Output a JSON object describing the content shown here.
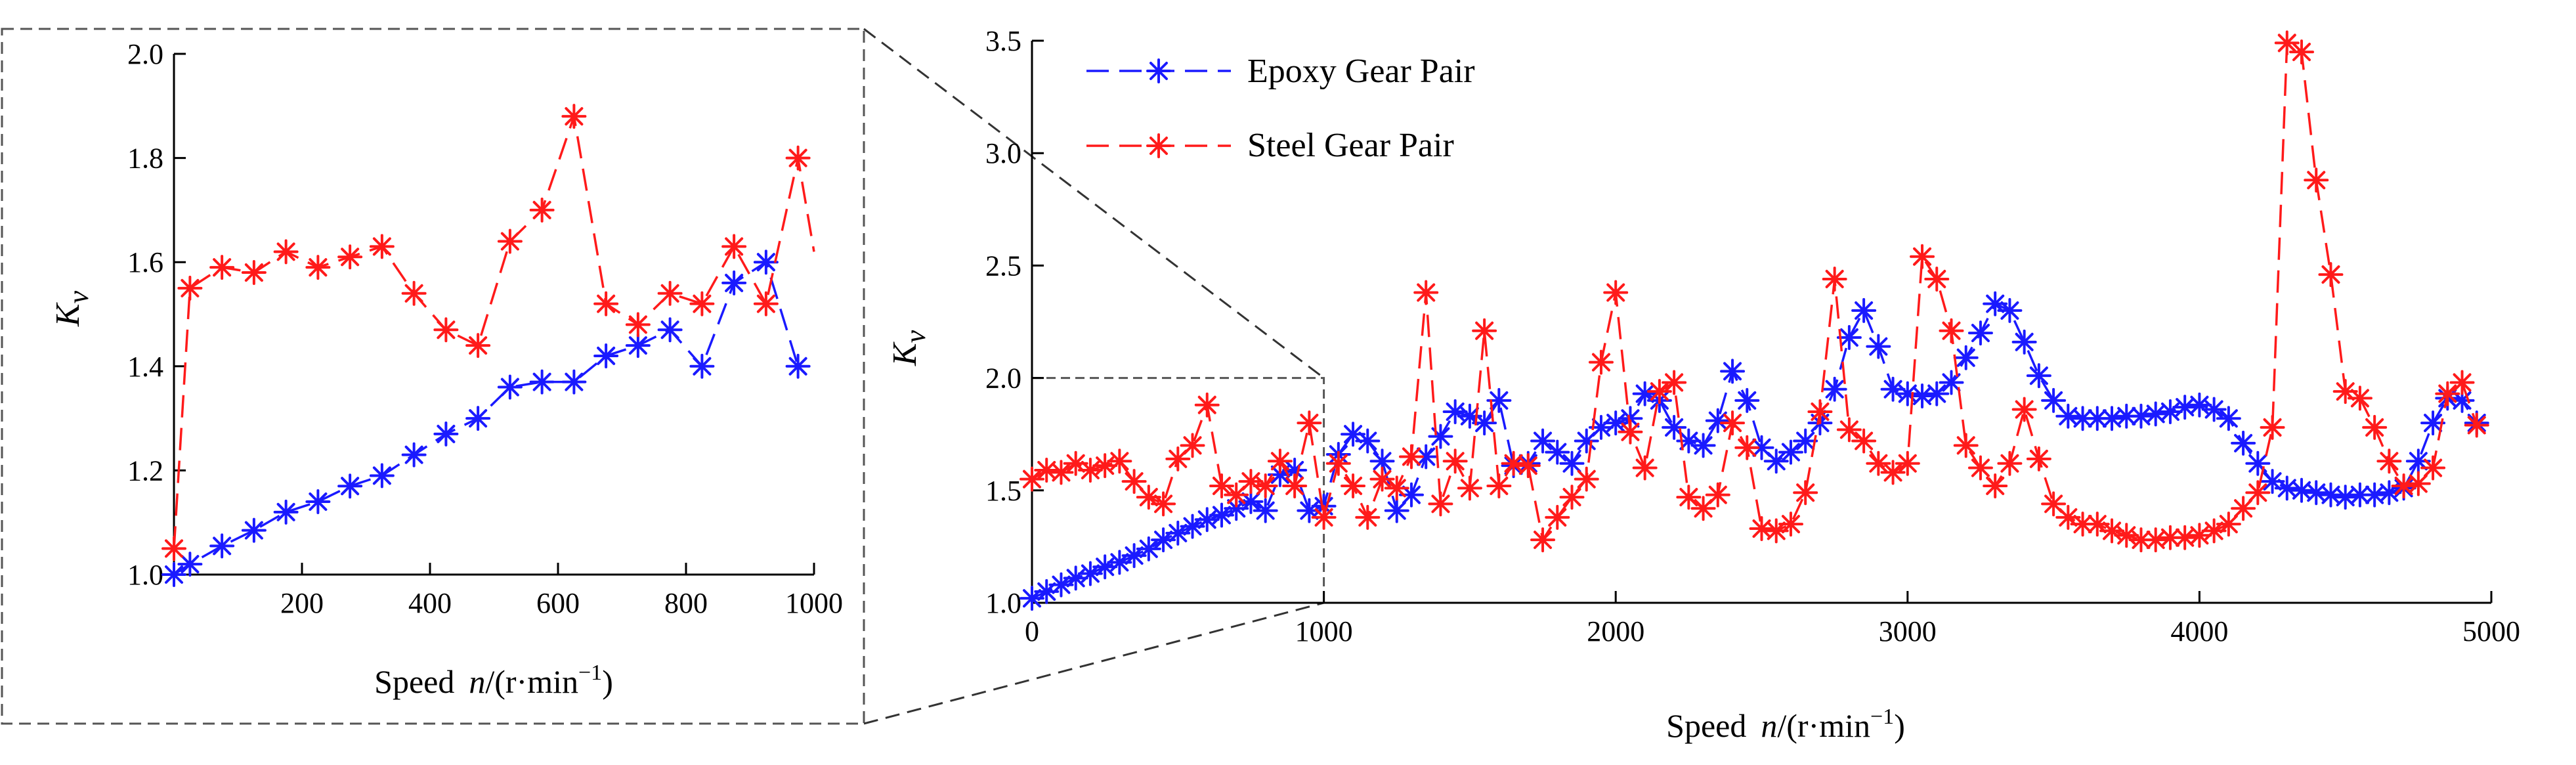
{
  "colors": {
    "epoxy": "#1a1aff",
    "steel": "#ff1a1a",
    "axis": "#000000",
    "frame": "#555555"
  },
  "chart_data": [
    {
      "id": "inset",
      "type": "line",
      "title": "",
      "xlabel": {
        "prefix": "Speed",
        "var": "n",
        "unit": "/(r·min",
        "exp": "−1",
        "close": ")"
      },
      "ylabel": {
        "symbol": "K",
        "sub": "v"
      },
      "xlim": [
        0,
        1000
      ],
      "ylim": [
        1.0,
        2.0
      ],
      "xticks": [
        200,
        400,
        600,
        800,
        1000
      ],
      "xtick_labels": [
        "200",
        "400",
        "600",
        "800",
        "1000"
      ],
      "yticks": [
        1.0,
        1.2,
        1.4,
        1.6,
        1.8,
        2.0
      ],
      "ytick_labels": [
        "1.0",
        "1.2",
        "1.4",
        "1.6",
        "1.8",
        "2.0"
      ],
      "series": [
        {
          "name": "Epoxy Gear Pair",
          "color_key": "epoxy",
          "x": [
            0,
            25,
            75,
            125,
            175,
            225,
            275,
            325,
            375,
            425,
            475,
            525,
            575,
            625,
            675,
            725,
            775,
            825,
            875,
            925,
            975
          ],
          "y": [
            1.0,
            1.02,
            1.055,
            1.085,
            1.12,
            1.14,
            1.17,
            1.19,
            1.23,
            1.27,
            1.3,
            1.36,
            1.37,
            1.37,
            1.42,
            1.44,
            1.47,
            1.4,
            1.56,
            1.6,
            1.4
          ]
        },
        {
          "name": "Steel Gear Pair",
          "color_key": "steel",
          "end_x": 1000,
          "end_y": 1.62,
          "x": [
            0,
            25,
            75,
            125,
            175,
            225,
            275,
            325,
            375,
            425,
            475,
            525,
            575,
            625,
            675,
            725,
            775,
            825,
            875,
            925,
            975
          ],
          "y": [
            1.05,
            1.55,
            1.59,
            1.58,
            1.62,
            1.59,
            1.61,
            1.63,
            1.54,
            1.47,
            1.44,
            1.64,
            1.7,
            1.88,
            1.52,
            1.48,
            1.54,
            1.52,
            1.63,
            1.52,
            1.8
          ]
        }
      ]
    },
    {
      "id": "main",
      "type": "line",
      "title": "",
      "xlabel": {
        "prefix": "Speed",
        "var": "n",
        "unit": "/(r·min",
        "exp": "−1",
        "close": ")"
      },
      "ylabel": {
        "symbol": "K",
        "sub": "v"
      },
      "xlim": [
        0,
        5000
      ],
      "ylim": [
        1.0,
        3.5
      ],
      "xticks": [
        0,
        1000,
        2000,
        3000,
        4000,
        5000
      ],
      "xtick_labels": [
        "0",
        "1000",
        "2000",
        "3000",
        "4000",
        "5000"
      ],
      "yticks": [
        1.0,
        1.5,
        2.0,
        2.5,
        3.0,
        3.5
      ],
      "ytick_labels": [
        "1.0",
        "1.5",
        "2.0",
        "2.5",
        "3.0",
        "3.5"
      ],
      "legend": {
        "position": "top-left",
        "entries": [
          "Epoxy Gear Pair",
          "Steel Gear Pair"
        ]
      },
      "series": [
        {
          "name": "Epoxy Gear Pair",
          "color_key": "epoxy",
          "x": [
            0,
            50,
            100,
            150,
            200,
            250,
            300,
            350,
            400,
            450,
            500,
            550,
            600,
            650,
            700,
            750,
            800,
            850,
            900,
            950,
            1000,
            1050,
            1100,
            1150,
            1200,
            1250,
            1300,
            1350,
            1400,
            1450,
            1500,
            1550,
            1600,
            1650,
            1700,
            1750,
            1800,
            1850,
            1900,
            1950,
            2000,
            2050,
            2100,
            2150,
            2200,
            2250,
            2300,
            2350,
            2400,
            2450,
            2500,
            2550,
            2600,
            2650,
            2700,
            2750,
            2800,
            2850,
            2900,
            2950,
            3000,
            3050,
            3100,
            3150,
            3200,
            3250,
            3300,
            3350,
            3400,
            3450,
            3500,
            3550,
            3600,
            3650,
            3700,
            3750,
            3800,
            3850,
            3900,
            3950,
            4000,
            4050,
            4100,
            4150,
            4200,
            4250,
            4300,
            4350,
            4400,
            4450,
            4500,
            4550,
            4600,
            4650,
            4700,
            4750,
            4800,
            4850,
            4900,
            4950
          ],
          "y": [
            1.02,
            1.05,
            1.08,
            1.11,
            1.13,
            1.16,
            1.18,
            1.21,
            1.24,
            1.28,
            1.31,
            1.34,
            1.37,
            1.39,
            1.42,
            1.45,
            1.41,
            1.57,
            1.59,
            1.41,
            1.43,
            1.66,
            1.75,
            1.72,
            1.63,
            1.41,
            1.48,
            1.65,
            1.74,
            1.85,
            1.83,
            1.8,
            1.9,
            1.61,
            1.62,
            1.72,
            1.67,
            1.62,
            1.72,
            1.78,
            1.8,
            1.82,
            1.93,
            1.9,
            1.78,
            1.72,
            1.7,
            1.81,
            2.03,
            1.9,
            1.69,
            1.63,
            1.67,
            1.72,
            1.8,
            1.95,
            2.18,
            2.3,
            2.14,
            1.95,
            1.93,
            1.92,
            1.93,
            1.98,
            2.09,
            2.2,
            2.33,
            2.3,
            2.16,
            2.01,
            1.9,
            1.83,
            1.82,
            1.82,
            1.82,
            1.83,
            1.83,
            1.84,
            1.85,
            1.87,
            1.88,
            1.86,
            1.82,
            1.71,
            1.62,
            1.54,
            1.51,
            1.5,
            1.49,
            1.48,
            1.47,
            1.48,
            1.48,
            1.49,
            1.51,
            1.63,
            1.8,
            1.91,
            1.9,
            1.8
          ]
        },
        {
          "name": "Steel Gear Pair",
          "color_key": "steel",
          "x": [
            0,
            50,
            100,
            150,
            200,
            250,
            300,
            350,
            400,
            450,
            500,
            550,
            600,
            650,
            700,
            750,
            800,
            850,
            900,
            950,
            1000,
            1050,
            1100,
            1150,
            1200,
            1250,
            1300,
            1350,
            1400,
            1450,
            1500,
            1550,
            1600,
            1650,
            1700,
            1750,
            1800,
            1850,
            1900,
            1950,
            2000,
            2050,
            2100,
            2150,
            2200,
            2250,
            2300,
            2350,
            2400,
            2450,
            2500,
            2550,
            2600,
            2650,
            2700,
            2750,
            2800,
            2850,
            2900,
            2950,
            3000,
            3050,
            3100,
            3150,
            3200,
            3250,
            3300,
            3350,
            3400,
            3450,
            3500,
            3550,
            3600,
            3650,
            3700,
            3750,
            3800,
            3850,
            3900,
            3950,
            4000,
            4050,
            4100,
            4150,
            4200,
            4250,
            4300,
            4350,
            4400,
            4450,
            4500,
            4550,
            4600,
            4650,
            4700,
            4750,
            4800,
            4850,
            4900,
            4950
          ],
          "y": [
            1.55,
            1.59,
            1.58,
            1.62,
            1.59,
            1.61,
            1.63,
            1.54,
            1.47,
            1.44,
            1.64,
            1.7,
            1.88,
            1.52,
            1.48,
            1.54,
            1.52,
            1.63,
            1.52,
            1.8,
            1.38,
            1.62,
            1.52,
            1.38,
            1.55,
            1.51,
            1.65,
            2.38,
            1.44,
            1.63,
            1.51,
            2.21,
            1.52,
            1.62,
            1.61,
            1.28,
            1.38,
            1.47,
            1.55,
            2.07,
            2.38,
            1.76,
            1.6,
            1.94,
            1.98,
            1.47,
            1.42,
            1.48,
            1.8,
            1.69,
            1.33,
            1.32,
            1.35,
            1.49,
            1.85,
            2.44,
            1.77,
            1.72,
            1.62,
            1.58,
            1.62,
            2.54,
            2.44,
            2.21,
            1.7,
            1.6,
            1.52,
            1.62,
            1.86,
            1.64,
            1.44,
            1.38,
            1.35,
            1.35,
            1.32,
            1.3,
            1.28,
            1.28,
            1.29,
            1.29,
            1.3,
            1.32,
            1.35,
            1.42,
            1.49,
            1.78,
            3.49,
            3.45,
            2.88,
            2.46,
            1.94,
            1.91,
            1.78,
            1.63,
            1.52,
            1.53,
            1.6,
            1.93,
            1.98,
            1.79
          ]
        }
      ]
    }
  ]
}
